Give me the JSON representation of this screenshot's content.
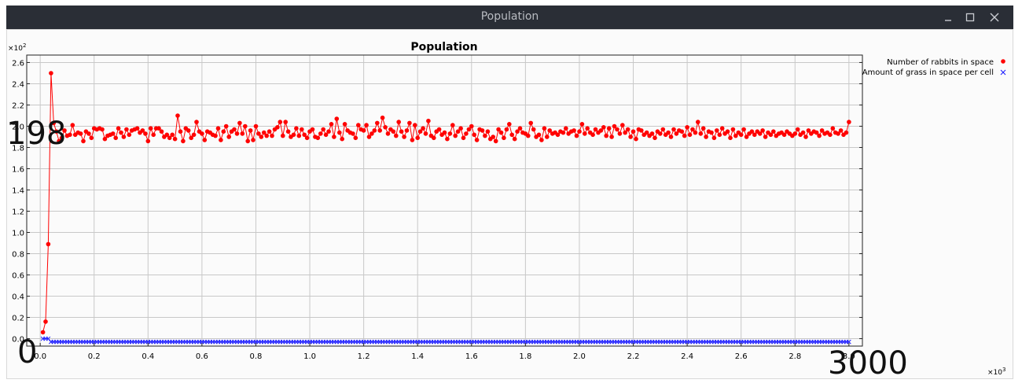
{
  "window": {
    "title": "Population"
  },
  "chart_data": {
    "type": "line",
    "title": "Population",
    "y_multiplier": "×10^2",
    "x_multiplier": "×10^3",
    "xlim": [
      -0.05,
      3.05
    ],
    "ylim": [
      -0.07,
      2.67
    ],
    "x_ticks": [
      "0.0",
      "0.2",
      "0.4",
      "0.6",
      "0.8",
      "1.0",
      "1.2",
      "1.4",
      "1.6",
      "1.8",
      "2.0",
      "2.2",
      "2.4",
      "2.6",
      "2.8",
      "3.0"
    ],
    "y_ticks": [
      "0.0",
      "0.2",
      "0.4",
      "0.6",
      "0.8",
      "1.0",
      "1.2",
      "1.4",
      "1.6",
      "1.8",
      "2.0",
      "2.2",
      "2.4",
      "2.6"
    ],
    "grid": true,
    "legend_position": "right",
    "series": [
      {
        "name": "Number of rabbits in space",
        "color": "#ff0000",
        "marker": "circle",
        "x": [
          0.01,
          0.02,
          0.03,
          0.04,
          0.05,
          0.06,
          0.07,
          0.08,
          0.09,
          0.1,
          0.11,
          0.12,
          0.13,
          0.14,
          0.15,
          0.16,
          0.17,
          0.18,
          0.19,
          0.2,
          0.21,
          0.22,
          0.23,
          0.24,
          0.25,
          0.26,
          0.27,
          0.28,
          0.29,
          0.3,
          0.31,
          0.32,
          0.33,
          0.34,
          0.35,
          0.36,
          0.37,
          0.38,
          0.39,
          0.4,
          0.41,
          0.42,
          0.43,
          0.44,
          0.45,
          0.46,
          0.47,
          0.48,
          0.49,
          0.5,
          0.51,
          0.52,
          0.53,
          0.54,
          0.55,
          0.56,
          0.57,
          0.58,
          0.59,
          0.6,
          0.61,
          0.62,
          0.63,
          0.64,
          0.65,
          0.66,
          0.67,
          0.68,
          0.69,
          0.7,
          0.71,
          0.72,
          0.73,
          0.74,
          0.75,
          0.76,
          0.77,
          0.78,
          0.79,
          0.8,
          0.81,
          0.82,
          0.83,
          0.84,
          0.85,
          0.86,
          0.87,
          0.88,
          0.89,
          0.9,
          0.91,
          0.92,
          0.93,
          0.94,
          0.95,
          0.96,
          0.97,
          0.98,
          0.99,
          1.0,
          1.01,
          1.02,
          1.03,
          1.04,
          1.05,
          1.06,
          1.07,
          1.08,
          1.09,
          1.1,
          1.11,
          1.12,
          1.13,
          1.14,
          1.15,
          1.16,
          1.17,
          1.18,
          1.19,
          1.2,
          1.21,
          1.22,
          1.23,
          1.24,
          1.25,
          1.26,
          1.27,
          1.28,
          1.29,
          1.3,
          1.31,
          1.32,
          1.33,
          1.34,
          1.35,
          1.36,
          1.37,
          1.38,
          1.39,
          1.4,
          1.41,
          1.42,
          1.43,
          1.44,
          1.45,
          1.46,
          1.47,
          1.48,
          1.49,
          1.5,
          1.51,
          1.52,
          1.53,
          1.54,
          1.55,
          1.56,
          1.57,
          1.58,
          1.59,
          1.6,
          1.61,
          1.62,
          1.63,
          1.64,
          1.65,
          1.66,
          1.67,
          1.68,
          1.69,
          1.7,
          1.71,
          1.72,
          1.73,
          1.74,
          1.75,
          1.76,
          1.77,
          1.78,
          1.79,
          1.8,
          1.81,
          1.82,
          1.83,
          1.84,
          1.85,
          1.86,
          1.87,
          1.88,
          1.89,
          1.9,
          1.91,
          1.92,
          1.93,
          1.94,
          1.95,
          1.96,
          1.97,
          1.98,
          1.99,
          2.0,
          2.01,
          2.02,
          2.03,
          2.04,
          2.05,
          2.06,
          2.07,
          2.08,
          2.09,
          2.1,
          2.11,
          2.12,
          2.13,
          2.14,
          2.15,
          2.16,
          2.17,
          2.18,
          2.19,
          2.2,
          2.21,
          2.22,
          2.23,
          2.24,
          2.25,
          2.26,
          2.27,
          2.28,
          2.29,
          2.3,
          2.31,
          2.32,
          2.33,
          2.34,
          2.35,
          2.36,
          2.37,
          2.38,
          2.39,
          2.4,
          2.41,
          2.42,
          2.43,
          2.44,
          2.45,
          2.46,
          2.47,
          2.48,
          2.49,
          2.5,
          2.51,
          2.52,
          2.53,
          2.54,
          2.55,
          2.56,
          2.57,
          2.58,
          2.59,
          2.6,
          2.61,
          2.62,
          2.63,
          2.64,
          2.65,
          2.66,
          2.67,
          2.68,
          2.69,
          2.7,
          2.71,
          2.72,
          2.73,
          2.74,
          2.75,
          2.76,
          2.77,
          2.78,
          2.79,
          2.8,
          2.81,
          2.82,
          2.83,
          2.84,
          2.85,
          2.86,
          2.87,
          2.88,
          2.89,
          2.9,
          2.91,
          2.92,
          2.93,
          2.94,
          2.95,
          2.96,
          2.97,
          2.98,
          2.99,
          3.0
        ],
        "y": [
          0.06,
          0.16,
          0.89,
          2.5,
          2.03,
          1.95,
          1.86,
          1.89,
          1.96,
          1.91,
          1.92,
          2.01,
          1.92,
          1.94,
          1.93,
          1.86,
          1.95,
          1.93,
          1.89,
          1.98,
          1.97,
          1.98,
          1.97,
          1.88,
          1.91,
          1.92,
          1.93,
          1.89,
          1.98,
          1.94,
          1.9,
          1.97,
          1.92,
          1.96,
          1.97,
          1.98,
          1.94,
          1.96,
          1.93,
          1.86,
          1.98,
          1.92,
          1.98,
          1.98,
          1.95,
          1.9,
          1.92,
          1.89,
          1.92,
          1.88,
          2.1,
          1.95,
          1.86,
          1.98,
          1.96,
          1.89,
          1.92,
          2.04,
          1.95,
          1.93,
          1.87,
          1.95,
          1.94,
          1.92,
          1.91,
          1.98,
          1.87,
          1.95,
          2.0,
          1.9,
          1.95,
          1.97,
          1.93,
          2.03,
          1.93,
          2.0,
          1.86,
          1.96,
          1.87,
          2.0,
          1.93,
          1.9,
          1.94,
          1.91,
          1.95,
          1.91,
          1.97,
          1.99,
          2.04,
          1.91,
          2.04,
          1.95,
          1.9,
          1.92,
          1.98,
          1.91,
          1.97,
          1.92,
          1.89,
          1.95,
          1.97,
          1.9,
          1.89,
          1.93,
          1.97,
          1.92,
          1.95,
          2.02,
          1.9,
          2.07,
          1.94,
          1.88,
          2.02,
          1.96,
          1.94,
          1.93,
          1.89,
          2.01,
          1.97,
          1.96,
          2.01,
          1.9,
          1.93,
          1.96,
          2.03,
          1.96,
          2.08,
          1.99,
          1.93,
          1.97,
          1.95,
          1.91,
          2.04,
          1.95,
          1.9,
          1.96,
          2.03,
          1.87,
          2.01,
          1.89,
          1.95,
          1.98,
          1.93,
          2.05,
          1.91,
          1.89,
          1.95,
          1.97,
          1.92,
          1.94,
          1.88,
          1.93,
          2.01,
          1.91,
          1.95,
          1.98,
          1.89,
          1.93,
          1.97,
          2.0,
          1.92,
          1.87,
          1.97,
          1.96,
          1.91,
          1.95,
          1.88,
          1.9,
          1.86,
          1.97,
          1.94,
          1.89,
          1.97,
          2.02,
          1.92,
          1.88,
          1.95,
          1.98,
          1.94,
          1.93,
          1.91,
          2.03,
          1.97,
          1.9,
          1.92,
          1.87,
          1.98,
          1.9,
          1.96,
          1.93,
          1.94,
          1.92,
          1.95,
          1.94,
          1.98,
          1.93,
          1.95,
          1.96,
          1.91,
          1.95,
          2.02,
          1.93,
          1.98,
          1.94,
          1.92,
          1.97,
          1.94,
          1.96,
          1.99,
          1.91,
          1.98,
          1.9,
          2.0,
          1.97,
          1.93,
          2.01,
          1.94,
          1.97,
          1.9,
          1.95,
          1.88,
          1.97,
          1.96,
          1.92,
          1.94,
          1.91,
          1.93,
          1.89,
          1.95,
          1.93,
          1.97,
          1.92,
          1.94,
          1.9,
          1.97,
          1.93,
          1.96,
          1.95,
          1.91,
          1.99,
          1.92,
          1.97,
          1.94,
          2.04,
          1.93,
          1.98,
          1.9,
          1.95,
          1.94,
          1.89,
          1.96,
          1.92,
          1.98,
          1.93,
          1.95,
          1.89,
          1.97,
          1.91,
          1.94,
          1.92,
          1.97,
          1.9,
          1.93,
          1.95,
          1.92,
          1.95,
          1.93,
          1.96,
          1.9,
          1.94,
          1.92,
          1.95,
          1.91,
          1.93,
          1.94,
          1.92,
          1.95,
          1.93,
          1.91,
          1.93,
          1.97,
          1.92,
          1.94,
          1.9,
          1.96,
          1.93,
          1.95,
          1.94,
          1.91,
          1.96,
          1.93,
          1.94,
          1.92,
          1.98,
          1.94,
          1.93,
          1.96,
          1.92,
          1.94,
          2.04
        ],
        "y_note": null
      },
      {
        "name": "Amount of grass in space per cell",
        "color": "#1f1fff",
        "marker": "x",
        "x_start": 0.01,
        "x_step": 0.01,
        "y": [
          0.0,
          0.0,
          0.0,
          -0.03
        ]
      }
    ],
    "annotations": [
      "198",
      "0",
      "3000"
    ]
  }
}
